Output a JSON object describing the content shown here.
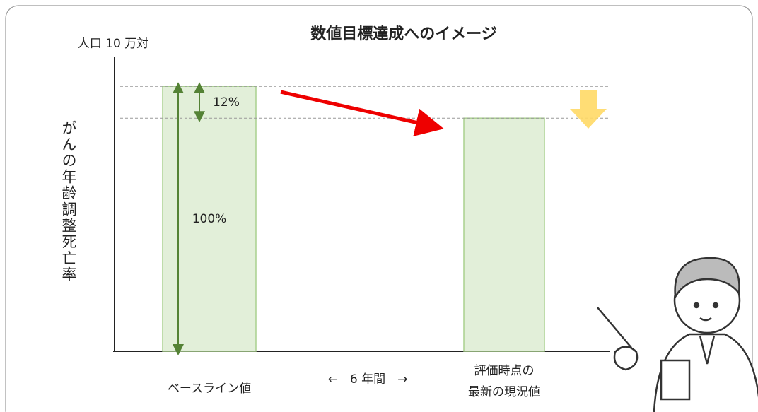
{
  "chart_data": {
    "type": "bar",
    "title": "数値目標達成へのイメージ",
    "y_unit": "人口 10 万対",
    "ylabel": "がんの年齢調整死亡率",
    "categories": [
      "ベースライン値",
      "評価時点の\n最新の現況値"
    ],
    "values": [
      100,
      88
    ],
    "value_labels": [
      "100%",
      null
    ],
    "difference_label": "12%",
    "period_label": "←　6 年間　→",
    "ylim": [
      0,
      111
    ],
    "color": "#e2efd9",
    "edge_color": "#a9d08e"
  }
}
